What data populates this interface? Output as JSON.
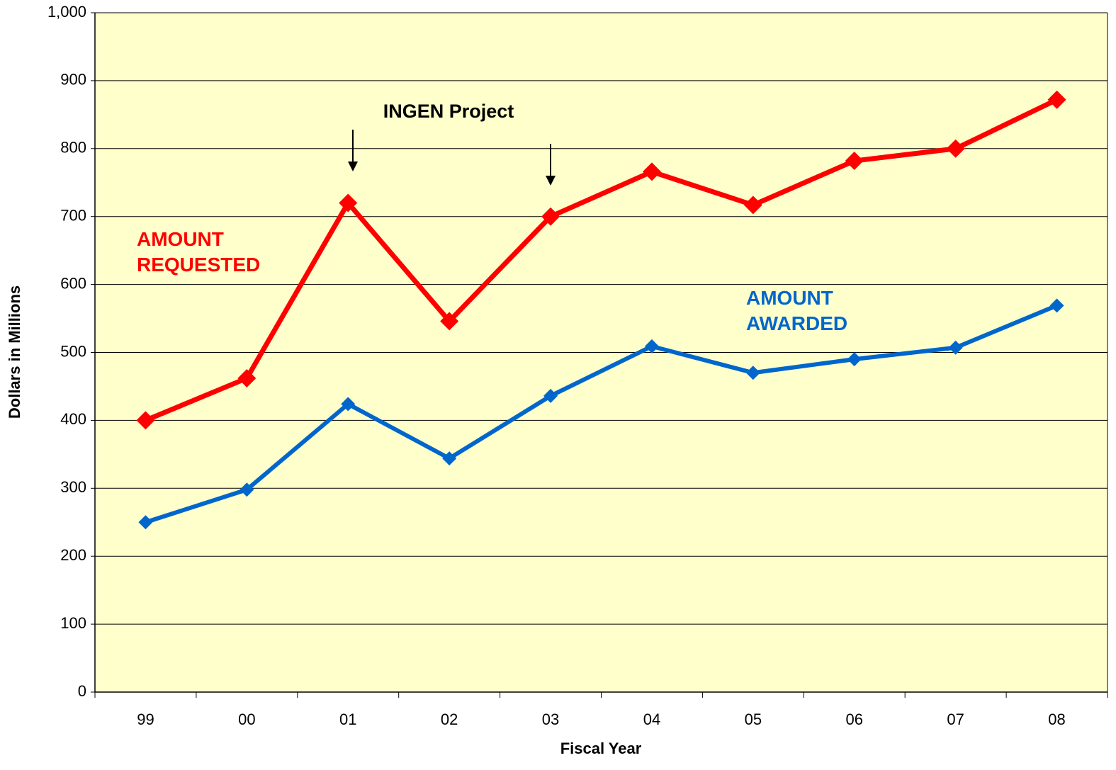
{
  "chart_data": {
    "type": "line",
    "x_label": "Fiscal Year",
    "y_label": "Dollars in Millions",
    "annotations": [
      "INGEN Project"
    ],
    "categories": [
      "99",
      "00",
      "01",
      "02",
      "03",
      "04",
      "05",
      "06",
      "07",
      "08"
    ],
    "series": [
      {
        "name": "AMOUNT REQUESTED",
        "color": "#ff0000",
        "values": [
          400,
          462,
          720,
          546,
          700,
          766,
          717,
          782,
          800,
          872
        ]
      },
      {
        "name": "AMOUNT AWARDED",
        "color": "#0066cc",
        "values": [
          250,
          298,
          424,
          344,
          436,
          509,
          470,
          490,
          507,
          569
        ]
      }
    ],
    "ylim": [
      0,
      1000
    ],
    "yticks": [
      0,
      100,
      200,
      300,
      400,
      500,
      600,
      700,
      800,
      900,
      {
        "value": 1000,
        "label": "1,000"
      }
    ],
    "grid": true,
    "plot_background": "#ffffcc"
  }
}
